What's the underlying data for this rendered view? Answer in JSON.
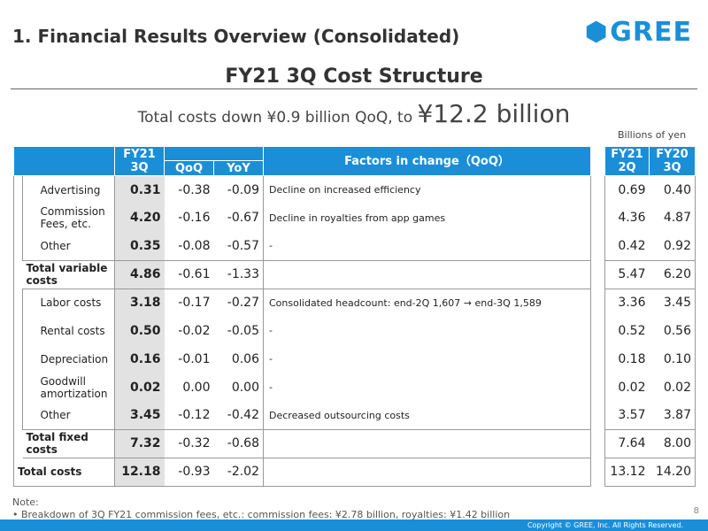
{
  "header": {
    "title": "1. Financial Results Overview (Consolidated)",
    "logo_text": "GREE",
    "brand_color": "#1a8fd8"
  },
  "subtitle": "FY21 3Q Cost Structure",
  "lead": {
    "prefix": "Total costs down ¥0.9 billion QoQ, to ",
    "highlight": "¥12.2 billion"
  },
  "units": "Billions of yen",
  "table": {
    "headers": {
      "fy21_3q": "FY21 3Q",
      "qoq": "QoQ",
      "yoy": "YoY",
      "factors": "Factors in change（QoQ）",
      "fy21_2q": "FY21 2Q",
      "fy20_3q": "FY20 3Q"
    },
    "rows": [
      {
        "label": "Advertising",
        "fy21_3q": "0.31",
        "qoq": "-0.38",
        "yoy": "-0.09",
        "factor": "Decline on increased efficiency",
        "fy21_2q": "0.69",
        "fy20_3q": "0.40"
      },
      {
        "label": "Commission Fees, etc.",
        "fy21_3q": "4.20",
        "qoq": "-0.16",
        "yoy": "-0.67",
        "factor": "Decline in royalties from app games",
        "fy21_2q": "4.36",
        "fy20_3q": "4.87"
      },
      {
        "label": "Other",
        "fy21_3q": "0.35",
        "qoq": "-0.08",
        "yoy": "-0.57",
        "factor": "-",
        "fy21_2q": "0.42",
        "fy20_3q": "0.92"
      },
      {
        "label": "Total variable costs",
        "fy21_3q": "4.86",
        "qoq": "-0.61",
        "yoy": "-1.33",
        "factor": "",
        "fy21_2q": "5.47",
        "fy20_3q": "6.20"
      },
      {
        "label": "Labor costs",
        "fy21_3q": "3.18",
        "qoq": "-0.17",
        "yoy": "-0.27",
        "factor": "Consolidated headcount: end-2Q 1,607 → end-3Q 1,589",
        "fy21_2q": "3.36",
        "fy20_3q": "3.45"
      },
      {
        "label": "Rental costs",
        "fy21_3q": "0.50",
        "qoq": "-0.02",
        "yoy": "-0.05",
        "factor": "-",
        "fy21_2q": "0.52",
        "fy20_3q": "0.56"
      },
      {
        "label": "Depreciation",
        "fy21_3q": "0.16",
        "qoq": "-0.01",
        "yoy": "0.06",
        "factor": "-",
        "fy21_2q": "0.18",
        "fy20_3q": "0.10"
      },
      {
        "label": "Goodwill amortization",
        "fy21_3q": "0.02",
        "qoq": "0.00",
        "yoy": "0.00",
        "factor": "-",
        "fy21_2q": "0.02",
        "fy20_3q": "0.02"
      },
      {
        "label": "Other",
        "fy21_3q": "3.45",
        "qoq": "-0.12",
        "yoy": "-0.42",
        "factor": "Decreased outsourcing costs",
        "fy21_2q": "3.57",
        "fy20_3q": "3.87"
      },
      {
        "label": "Total fixed costs",
        "fy21_3q": "7.32",
        "qoq": "-0.32",
        "yoy": "-0.68",
        "factor": "",
        "fy21_2q": "7.64",
        "fy20_3q": "8.00"
      },
      {
        "label": "Total costs",
        "fy21_3q": "12.18",
        "qoq": "-0.93",
        "yoy": "-2.02",
        "factor": "",
        "fy21_2q": "13.12",
        "fy20_3q": "14.20"
      }
    ]
  },
  "note": {
    "title": "Note:",
    "text": "• Breakdown of 3Q FY21 commission fees, etc.: commission fees: ¥2.78 billion, royalties: ¥1.42 billion"
  },
  "footer": {
    "page_number": "8",
    "copyright": "Copyright © GREE, Inc. All Rights Reserved."
  }
}
